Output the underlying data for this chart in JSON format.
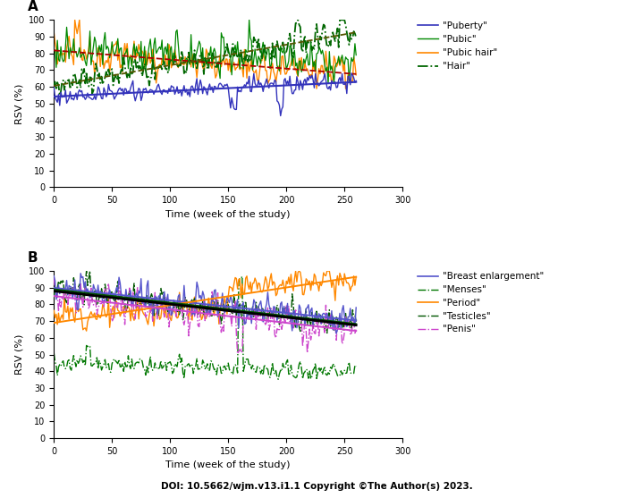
{
  "panel_A": {
    "n_weeks": 261,
    "series": {
      "puberty": {
        "color": "#3333bb",
        "linestyle": "-",
        "linewidth": 1.0,
        "label": "\"Puberty\"",
        "base": 54,
        "trend": 0.038,
        "noise": 3.5,
        "seed": 1
      },
      "pubic": {
        "color": "#008800",
        "linestyle": "-",
        "linewidth": 0.9,
        "label": "\"Pubic\"",
        "base": 83,
        "trend": -0.03,
        "noise": 7.0,
        "seed": 2
      },
      "pubic_hair": {
        "color": "#ff8800",
        "linestyle": "-",
        "linewidth": 1.0,
        "label": "\"Pubic hair\"",
        "base": 82,
        "trend": -0.06,
        "noise": 6.0,
        "seed": 3
      },
      "hair": {
        "color": "#006600",
        "linestyle": "-.",
        "linewidth": 1.3,
        "label": "\"Hair\"",
        "base": 61,
        "trend": 0.115,
        "noise": 5.0,
        "seed": 4
      }
    },
    "trend_puberty": {
      "color": "#3333bb",
      "linestyle": "-",
      "linewidth": 1.5
    },
    "trend_pubic_hair": {
      "color": "#aa0000",
      "linestyle": "--",
      "linewidth": 1.3
    },
    "trend_hair": {
      "color": "#555500",
      "linestyle": "--",
      "linewidth": 1.3
    },
    "ylabel": "RSV (%)",
    "xlabel": "Time (week of the study)",
    "ylim": [
      0,
      100
    ],
    "xlim": [
      0,
      300
    ],
    "xticks": [
      0,
      50,
      100,
      150,
      200,
      250,
      300
    ],
    "yticks": [
      0,
      10,
      20,
      30,
      40,
      50,
      60,
      70,
      80,
      90,
      100
    ],
    "panel_label": "A"
  },
  "panel_B": {
    "n_weeks": 261,
    "series": {
      "breast_enlargement": {
        "color": "#5555cc",
        "linestyle": "-",
        "linewidth": 1.0,
        "label": "\"Breast enlargement\"",
        "base": 89,
        "trend": -0.07,
        "noise": 6.0,
        "seed": 10
      },
      "menses": {
        "color": "#007700",
        "linestyle": "-.",
        "linewidth": 1.0,
        "label": "\"Menses\"",
        "base": 45,
        "trend": -0.02,
        "noise": 3.5,
        "seed": 11
      },
      "period": {
        "color": "#ff8800",
        "linestyle": "-",
        "linewidth": 1.0,
        "label": "\"Period\"",
        "base": 74,
        "trend": 0.025,
        "noise": 5.0,
        "seed": 12
      },
      "testicles": {
        "color": "#005500",
        "linestyle": "-.",
        "linewidth": 1.0,
        "label": "\"Testicles\"",
        "base": 88,
        "trend": -0.07,
        "noise": 5.5,
        "seed": 13
      },
      "penis": {
        "color": "#cc44cc",
        "linestyle": "-.",
        "linewidth": 1.0,
        "label": "\"Penis\"",
        "base": 86,
        "trend": -0.075,
        "noise": 6.5,
        "seed": 14
      }
    },
    "trend_be": {
      "color": "#5555cc",
      "linestyle": "-",
      "linewidth": 1.4
    },
    "trend_per": {
      "color": "#ff8800",
      "linestyle": "-",
      "linewidth": 1.4
    },
    "trend_tes": {
      "color": "#005500",
      "linestyle": "-",
      "linewidth": 1.4
    },
    "trend_pen": {
      "color": "#cc44cc",
      "linestyle": "-",
      "linewidth": 1.4
    },
    "trend_overall": {
      "color": "#000000",
      "linestyle": "-",
      "linewidth": 2.0
    },
    "ylabel": "RSV (%)",
    "xlabel": "Time (week of the study)",
    "ylim": [
      0,
      100
    ],
    "xlim": [
      0,
      300
    ],
    "xticks": [
      0,
      50,
      100,
      150,
      200,
      250,
      300
    ],
    "yticks": [
      0,
      10,
      20,
      30,
      40,
      50,
      60,
      70,
      80,
      90,
      100
    ],
    "panel_label": "B"
  },
  "doi_bold": "DOI: 10.5662/wjm.v13.i1.1",
  "copyright_bold": " Copyright ©The Author(s) 2023.",
  "background_color": "#ffffff",
  "tick_fontsize": 7,
  "label_fontsize": 8,
  "legend_fontsize": 7.5,
  "panel_label_fontsize": 11
}
